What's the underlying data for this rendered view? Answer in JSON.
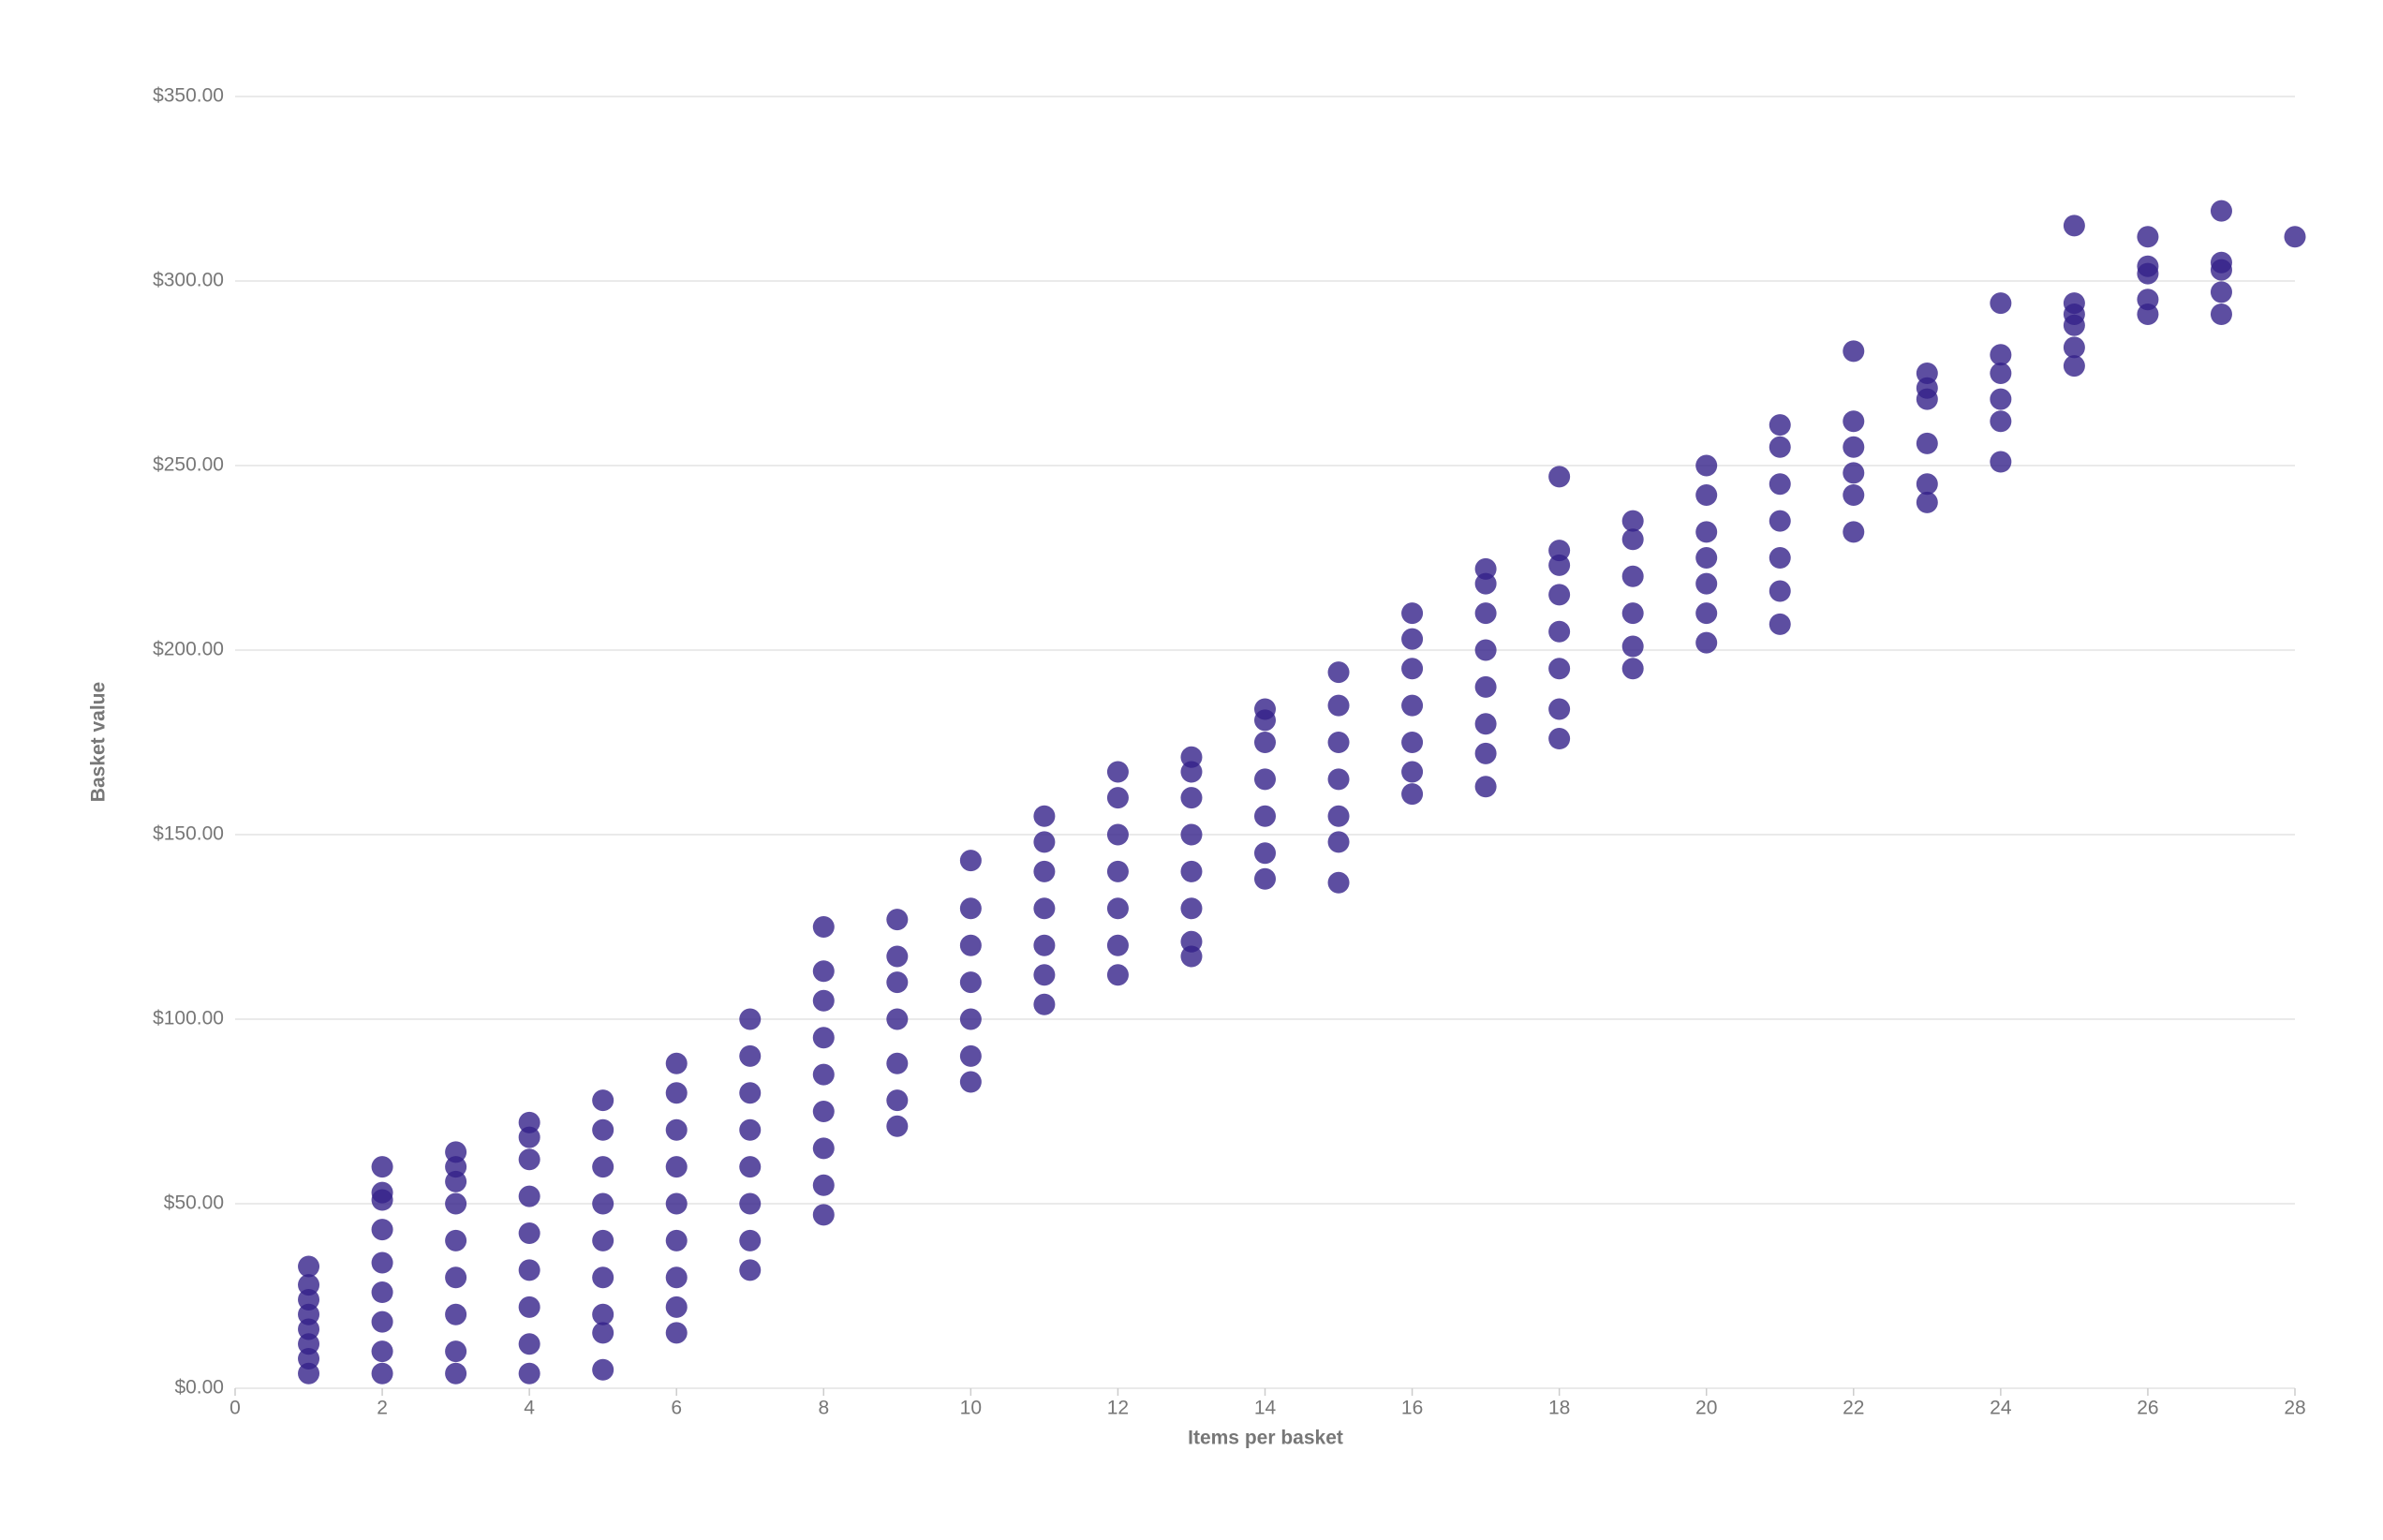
{
  "chart_data": {
    "type": "scatter",
    "x_label": "Items per basket",
    "y_label": "Basket value",
    "color": "#34228a",
    "xlim": [
      0,
      28
    ],
    "xticks": [
      0,
      2,
      4,
      6,
      8,
      10,
      12,
      14,
      16,
      18,
      20,
      22,
      24,
      26,
      28
    ],
    "ylim": [
      0,
      350
    ],
    "yticks": [
      {
        "value": 0,
        "label": "$0.00"
      },
      {
        "value": 50,
        "label": "$50.00"
      },
      {
        "value": 100,
        "label": "$100.00"
      },
      {
        "value": 150,
        "label": "$150.00"
      },
      {
        "value": 200,
        "label": "$200.00"
      },
      {
        "value": 250,
        "label": "$250.00"
      },
      {
        "value": 300,
        "label": "$300.00"
      },
      {
        "value": 350,
        "label": "$350.00"
      }
    ],
    "grid": true,
    "x": [
      1,
      1,
      1,
      1,
      1,
      1,
      1,
      1,
      2,
      2,
      2,
      2,
      2,
      2,
      2,
      2,
      2,
      3,
      3,
      3,
      3,
      3,
      3,
      3,
      3,
      3,
      4,
      4,
      4,
      4,
      4,
      4,
      4,
      4,
      4,
      5,
      5,
      5,
      5,
      5,
      5,
      5,
      5,
      5,
      6,
      6,
      6,
      6,
      6,
      6,
      6,
      6,
      6,
      7,
      7,
      7,
      7,
      7,
      7,
      7,
      7,
      8,
      8,
      8,
      8,
      8,
      8,
      8,
      8,
      8,
      9,
      9,
      9,
      9,
      9,
      9,
      9,
      10,
      10,
      10,
      10,
      10,
      10,
      10,
      11,
      11,
      11,
      11,
      11,
      11,
      11,
      12,
      12,
      12,
      12,
      12,
      12,
      12,
      13,
      13,
      13,
      13,
      13,
      13,
      13,
      13,
      14,
      14,
      14,
      14,
      14,
      14,
      14,
      15,
      15,
      15,
      15,
      15,
      15,
      15,
      16,
      16,
      16,
      16,
      16,
      16,
      16,
      17,
      17,
      17,
      17,
      17,
      17,
      17,
      17,
      18,
      18,
      18,
      18,
      18,
      18,
      18,
      18,
      19,
      19,
      19,
      19,
      19,
      19,
      20,
      20,
      20,
      20,
      20,
      20,
      20,
      21,
      21,
      21,
      21,
      21,
      21,
      21,
      22,
      22,
      22,
      22,
      22,
      22,
      23,
      23,
      23,
      23,
      23,
      23,
      24,
      24,
      24,
      24,
      24,
      24,
      25,
      25,
      25,
      25,
      25,
      25,
      26,
      26,
      26,
      26,
      26,
      27,
      27,
      27,
      27,
      27,
      28
    ],
    "y": [
      4,
      8,
      12,
      16,
      20,
      24,
      28,
      33,
      4,
      10,
      18,
      26,
      34,
      43,
      51,
      53,
      60,
      4,
      10,
      20,
      30,
      40,
      50,
      56,
      60,
      64,
      4,
      12,
      22,
      32,
      42,
      52,
      62,
      68,
      72,
      5,
      15,
      20,
      30,
      40,
      50,
      60,
      70,
      78,
      15,
      22,
      30,
      40,
      50,
      60,
      70,
      80,
      88,
      32,
      40,
      50,
      60,
      70,
      80,
      90,
      100,
      47,
      55,
      65,
      75,
      85,
      95,
      105,
      113,
      125,
      71,
      78,
      88,
      100,
      110,
      117,
      127,
      83,
      90,
      100,
      110,
      120,
      130,
      143,
      104,
      112,
      120,
      130,
      140,
      148,
      155,
      112,
      120,
      130,
      140,
      150,
      160,
      167,
      117,
      121,
      130,
      140,
      150,
      160,
      167,
      171,
      138,
      145,
      155,
      165,
      175,
      181,
      184,
      137,
      148,
      155,
      165,
      175,
      185,
      194,
      161,
      167,
      175,
      185,
      195,
      203,
      210,
      163,
      172,
      180,
      190,
      200,
      210,
      218,
      222,
      176,
      184,
      195,
      205,
      215,
      223,
      227,
      247,
      195,
      201,
      210,
      220,
      230,
      235,
      202,
      210,
      218,
      225,
      232,
      242,
      250,
      207,
      216,
      225,
      235,
      245,
      255,
      261,
      232,
      242,
      248,
      255,
      262,
      281,
      240,
      245,
      256,
      268,
      271,
      275,
      251,
      262,
      268,
      275,
      280,
      294,
      277,
      282,
      288,
      291,
      294,
      315,
      291,
      295,
      302,
      304,
      312,
      291,
      297,
      303,
      305,
      319,
      312
    ]
  }
}
